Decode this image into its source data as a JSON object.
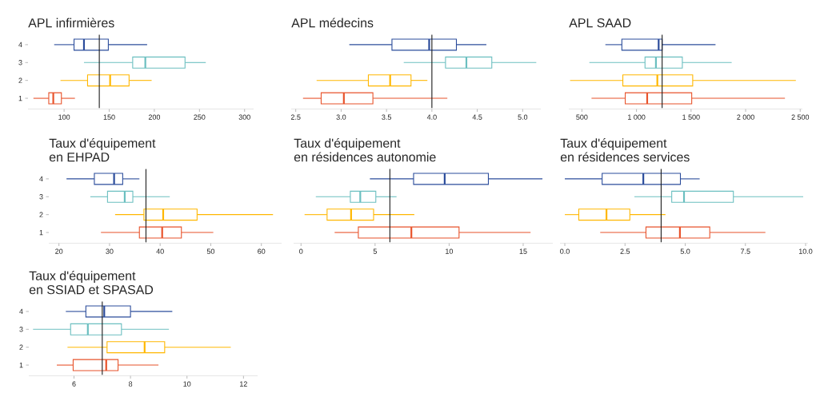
{
  "chart_data": [
    {
      "type": "box",
      "title": "APL infirmières",
      "orientation": "horizontal",
      "categories": [
        "4",
        "3",
        "2",
        "1"
      ],
      "colors": [
        "#2b4c9b",
        "#6bbfc0",
        "#ffb700",
        "#e8532b"
      ],
      "boxes": [
        {
          "low": 89,
          "q1": 111,
          "median": 122,
          "q3": 149,
          "high": 192
        },
        {
          "low": 122,
          "q1": 176,
          "median": 190,
          "q3": 234,
          "high": 257
        },
        {
          "low": 96,
          "q1": 126,
          "median": 151,
          "q3": 172,
          "high": 197
        },
        {
          "low": 66,
          "q1": 83,
          "median": 88,
          "q3": 97,
          "high": 112
        }
      ],
      "xlim": [
        60,
        310
      ],
      "xticks": [
        100,
        150,
        200,
        250,
        300
      ],
      "ref_lines": [
        {
          "axis": "x",
          "value": 139,
          "color": "#1a1a1a"
        }
      ]
    },
    {
      "type": "box",
      "title": "APL médecins",
      "orientation": "horizontal",
      "categories": [
        "4",
        "3",
        "2",
        "1"
      ],
      "tick_labels": "x",
      "colors": [
        "#2b4c9b",
        "#6bbfc0",
        "#ffb700",
        "#e8532b"
      ],
      "boxes": [
        {
          "low": 3.09,
          "q1": 3.56,
          "median": 3.97,
          "q3": 4.27,
          "high": 4.6
        },
        {
          "low": 3.69,
          "q1": 4.15,
          "median": 4.38,
          "q3": 4.66,
          "high": 5.15
        },
        {
          "low": 2.73,
          "q1": 3.3,
          "median": 3.54,
          "q3": 3.77,
          "high": 3.95
        },
        {
          "low": 2.58,
          "q1": 2.78,
          "median": 3.03,
          "q3": 3.35,
          "high": 4.17
        }
      ],
      "xlim": [
        2.45,
        5.2
      ],
      "xticks": [
        2.5,
        {
          "value": 3,
          "label": "3.0"
        },
        3.5,
        {
          "value": 4,
          "label": "4.0"
        },
        4.5,
        {
          "value": 5,
          "label": "5.0"
        }
      ],
      "ref_lines": [
        {
          "axis": "x",
          "value": 4,
          "color": "#1a1a1a"
        }
      ]
    },
    {
      "type": "box",
      "title": "APL SAAD",
      "orientation": "horizontal",
      "categories": [
        "4",
        "3",
        "2",
        "1"
      ],
      "tick_labels": "x",
      "colors": [
        "#2b4c9b",
        "#6bbfc0",
        "#ffb700",
        "#e8532b"
      ],
      "boxes": [
        {
          "low": 715,
          "q1": 866,
          "median": 1203,
          "q3": 1235,
          "high": 1724
        },
        {
          "low": 568,
          "q1": 1078,
          "median": 1178,
          "q3": 1420,
          "high": 1872
        },
        {
          "low": 392,
          "q1": 875,
          "median": 1191,
          "q3": 1515,
          "high": 2460
        },
        {
          "low": 588,
          "q1": 897,
          "median": 1098,
          "q3": 1506,
          "high": 2360
        }
      ],
      "xlim": [
        380,
        2520
      ],
      "xticks": [
        500,
        {
          "value": 1000,
          "label": "1 000"
        },
        {
          "value": 1500,
          "label": "1 500"
        },
        {
          "value": 2000,
          "label": "2 000"
        },
        {
          "value": 2500,
          "label": "2 500"
        }
      ],
      "ref_lines": [
        {
          "axis": "x",
          "value": 1235,
          "color": "#1a1a1a"
        }
      ]
    },
    {
      "type": "box",
      "title": "Taux d'équipement en EHPAD",
      "orientation": "horizontal",
      "categories": [
        "4",
        "3",
        "2",
        "1"
      ],
      "colors": [
        "#2b4c9b",
        "#6bbfc0",
        "#ffb700",
        "#e8532b"
      ],
      "boxes": [
        {
          "low": 21.5,
          "q1": 27,
          "median": 30.9,
          "q3": 32.6,
          "high": 35.9
        },
        {
          "low": 26.2,
          "q1": 29.6,
          "median": 33,
          "q3": 34.6,
          "high": 41.9
        },
        {
          "low": 31.1,
          "q1": 36.8,
          "median": 40.6,
          "q3": 47.3,
          "high": 62.3
        },
        {
          "low": 28.3,
          "q1": 35.9,
          "median": 40.4,
          "q3": 44.2,
          "high": 50.5
        }
      ],
      "xlim": [
        18,
        64
      ],
      "xticks": [
        20,
        30,
        40,
        50,
        60
      ],
      "ref_lines": [
        {
          "axis": "x",
          "value": 37.2,
          "color": "#1a1a1a"
        }
      ]
    },
    {
      "type": "box",
      "title": "Taux d'équipement en résidences autonomie",
      "orientation": "horizontal",
      "categories": [
        "4",
        "3",
        "2",
        "1"
      ],
      "tick_labels": "x",
      "colors": [
        "#2b4c9b",
        "#6bbfc0",
        "#ffb700",
        "#e8532b"
      ],
      "boxes": [
        {
          "low": 4.65,
          "q1": 7.6,
          "median": 9.7,
          "q3": 12.65,
          "high": 16.3
        },
        {
          "low": 1.0,
          "q1": 3.33,
          "median": 4.0,
          "q3": 5.05,
          "high": 6.45
        },
        {
          "low": 0.24,
          "q1": 1.76,
          "median": 3.38,
          "q3": 4.9,
          "high": 7.65
        },
        {
          "low": 2.27,
          "q1": 3.87,
          "median": 7.45,
          "q3": 10.67,
          "high": 15.5
        }
      ],
      "xlim": [
        -0.5,
        17
      ],
      "xticks": [
        0,
        5,
        10,
        15
      ],
      "ref_lines": [
        {
          "axis": "x",
          "value": 6,
          "color": "#1a1a1a"
        }
      ]
    },
    {
      "type": "box",
      "title": "Taux d'équipement en résidences services",
      "orientation": "horizontal",
      "categories": [
        "4",
        "3",
        "2",
        "1"
      ],
      "tick_labels": "x",
      "colors": [
        "#2b4c9b",
        "#6bbfc0",
        "#ffb700",
        "#e8532b"
      ],
      "boxes": [
        {
          "low": 0.0,
          "q1": 1.55,
          "median": 3.26,
          "q3": 4.8,
          "high": 5.6
        },
        {
          "low": 2.89,
          "q1": 4.44,
          "median": 4.95,
          "q3": 7.0,
          "high": 9.9
        },
        {
          "low": 0.0,
          "q1": 0.58,
          "median": 1.73,
          "q3": 2.7,
          "high": 4.18
        },
        {
          "low": 1.47,
          "q1": 3.37,
          "median": 4.78,
          "q3": 6.02,
          "high": 8.33
        }
      ],
      "xlim": [
        -0.2,
        10.1
      ],
      "xticks": [
        {
          "value": 0,
          "label": "0.0"
        },
        2.5,
        {
          "value": 5,
          "label": "5.0"
        },
        7.5,
        {
          "value": 10,
          "label": "10.0"
        }
      ],
      "ref_lines": [
        {
          "axis": "x",
          "value": 4,
          "color": "#1a1a1a"
        }
      ]
    },
    {
      "type": "box",
      "title": "Taux d'équipement en SSIAD et SPASAD",
      "orientation": "horizontal",
      "categories": [
        "4",
        "3",
        "2",
        "1"
      ],
      "colors": [
        "#2b4c9b",
        "#6bbfc0",
        "#ffb700",
        "#e8532b"
      ],
      "boxes": [
        {
          "low": 5.71,
          "q1": 6.42,
          "median": 7.07,
          "q3": 8.0,
          "high": 9.48
        },
        {
          "low": 4.55,
          "q1": 5.88,
          "median": 6.49,
          "q3": 7.68,
          "high": 9.36
        },
        {
          "low": 5.77,
          "q1": 7.17,
          "median": 8.5,
          "q3": 9.21,
          "high": 11.55
        },
        {
          "low": 5.39,
          "q1": 5.97,
          "median": 7.14,
          "q3": 7.56,
          "high": 8.99
        }
      ],
      "xlim": [
        4.4,
        12.5
      ],
      "xticks": [
        6,
        8,
        10,
        12
      ],
      "ref_lines": [
        {
          "axis": "x",
          "value": 7,
          "color": "#1a1a1a"
        }
      ]
    }
  ]
}
